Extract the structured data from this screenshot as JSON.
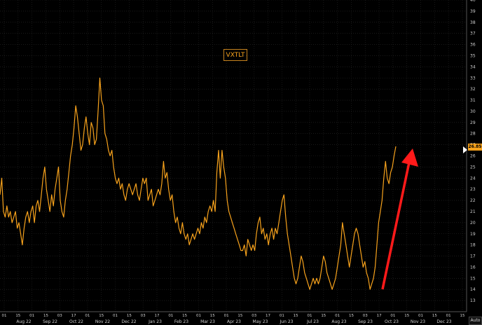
{
  "chart_data": {
    "type": "line",
    "title": "",
    "xlabel": "",
    "ylabel": "",
    "legend": [
      "VXTLT"
    ],
    "legend_placement": "top-center",
    "grid": true,
    "ylim": [
      12,
      40
    ],
    "y_ticks": [
      "13",
      "14",
      "15",
      "16",
      "17",
      "18",
      "19",
      "20",
      "21",
      "22",
      "23",
      "24",
      "25",
      "26",
      "27",
      "28",
      "29",
      "30",
      "31",
      "32",
      "33",
      "34",
      "35",
      "36",
      "37",
      "38",
      "39",
      "40"
    ],
    "last_value_label": "26.85",
    "colors": {
      "series": "#f7a21c",
      "annotation_arrow": "#ff1a1a",
      "background": "#000000"
    },
    "x_tick_labels": [
      "01",
      "15",
      "01",
      "15",
      "03",
      "17",
      "01",
      "15",
      "01",
      "15",
      "03",
      "17",
      "01",
      "15",
      "01",
      "15",
      "01",
      "15",
      "03",
      "17",
      "01",
      "15",
      "01",
      "15",
      "01",
      "15",
      "03",
      "17",
      "01",
      "15",
      "01",
      "15",
      "01",
      "15"
    ],
    "x_month_labels": [
      "Aug 22",
      "Sep 22",
      "Oct 22",
      "Nov 22",
      "Dec 22",
      "Jan 23",
      "Feb 23",
      "Mar 23",
      "Apr 23",
      "May 23",
      "Jun 23",
      "Jul 23",
      "Aug 23",
      "Sep 23",
      "Oct 23",
      "Nov 23",
      "Dec 23"
    ],
    "series": [
      {
        "name": "VXTLT",
        "values": [
          22.5,
          24,
          21,
          20.5,
          21.5,
          20.5,
          21,
          20,
          20.5,
          21,
          19.5,
          20,
          19,
          18,
          19.5,
          20.5,
          21,
          20,
          21,
          21.5,
          20,
          21.5,
          22,
          21,
          22.5,
          24,
          25,
          23,
          22,
          21,
          22.5,
          21.5,
          23,
          24,
          25,
          22,
          21,
          20.5,
          22,
          23,
          24.5,
          26,
          27,
          28.5,
          30.5,
          29.5,
          28,
          26.5,
          27,
          28.5,
          29.5,
          28,
          27,
          29,
          28.5,
          27,
          27.5,
          30,
          33,
          31,
          30.5,
          28,
          27.5,
          26.5,
          26,
          26.5,
          25,
          24,
          23.5,
          24,
          23,
          23.5,
          22.5,
          22,
          23,
          23.5,
          23,
          22.5,
          23,
          23.5,
          22.5,
          22,
          23,
          24,
          23.5,
          24,
          22,
          22.5,
          23,
          21.5,
          22,
          22.5,
          23,
          22.5,
          23.5,
          25.5,
          24,
          24.5,
          23,
          22,
          22.5,
          21,
          20,
          20.5,
          19.5,
          19,
          20,
          19,
          18.5,
          19,
          18,
          18.5,
          19,
          18.5,
          19,
          19.5,
          19,
          20,
          19.5,
          20.5,
          20,
          21,
          21.5,
          21,
          22,
          21,
          24.5,
          26.5,
          24,
          26.5,
          25,
          24,
          22,
          21,
          20.5,
          20,
          19.5,
          19,
          18.5,
          18,
          17.5,
          17.5,
          18,
          17,
          18.5,
          18,
          17.5,
          18,
          17.5,
          19,
          20,
          20.5,
          19,
          19.5,
          18.5,
          19,
          18,
          19,
          19.5,
          18.5,
          19.5,
          19,
          20,
          21,
          22,
          22.5,
          20.5,
          19,
          18,
          17,
          16,
          15,
          14.5,
          15,
          16,
          17,
          16.5,
          15.5,
          15,
          14.5,
          14,
          14.5,
          15,
          14.5,
          15,
          14.5,
          15,
          16,
          17,
          16.5,
          15.5,
          15,
          14.5,
          14,
          14.5,
          15,
          16,
          17,
          18,
          20,
          19,
          18,
          17,
          16,
          17,
          18,
          19,
          19.5,
          19,
          18,
          17,
          16,
          16.5,
          15.5,
          15,
          14,
          14.5,
          15,
          16,
          18,
          20,
          21,
          22,
          24,
          25.5,
          24,
          23.5,
          24.5,
          25,
          26,
          26.85
        ]
      }
    ],
    "annotation": "red upward arrow"
  },
  "ui": {
    "auto_label": "Auto"
  }
}
